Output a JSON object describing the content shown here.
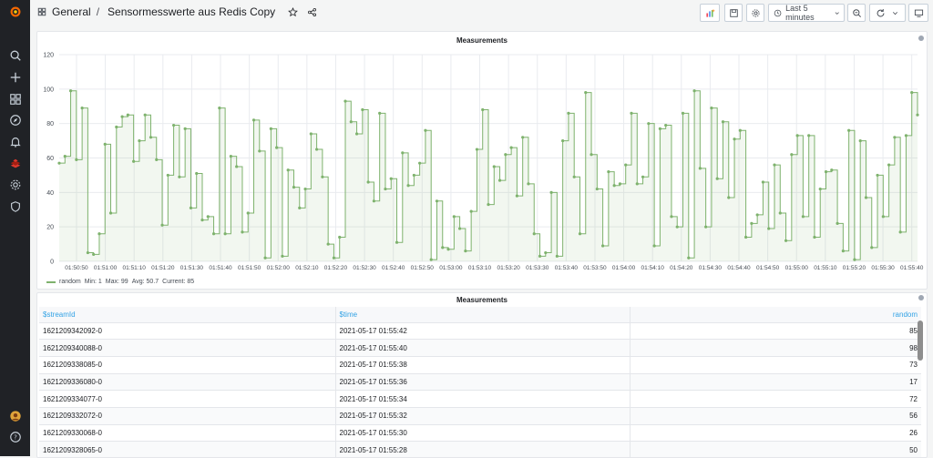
{
  "breadcrumb": {
    "folder": "General",
    "separator": "/",
    "dashboard": "Sensormesswerte aus Redis Copy"
  },
  "toolbar": {
    "time_range": "Last 5 minutes"
  },
  "graph_panel": {
    "title": "Measurements"
  },
  "table_panel": {
    "title": "Measurements",
    "columns": [
      "$streamId",
      "$time",
      "random"
    ],
    "rows": [
      [
        "1621209342092-0",
        "2021-05-17 01:55:42",
        "85"
      ],
      [
        "1621209340088-0",
        "2021-05-17 01:55:40",
        "98"
      ],
      [
        "1621209338085-0",
        "2021-05-17 01:55:38",
        "73"
      ],
      [
        "1621209336080-0",
        "2021-05-17 01:55:36",
        "17"
      ],
      [
        "1621209334077-0",
        "2021-05-17 01:55:34",
        "72"
      ],
      [
        "1621209332072-0",
        "2021-05-17 01:55:32",
        "56"
      ],
      [
        "1621209330068-0",
        "2021-05-17 01:55:30",
        "26"
      ],
      [
        "1621209328065-0",
        "2021-05-17 01:55:28",
        "50"
      ]
    ]
  },
  "legend": {
    "series": "random",
    "min": "Min: 1",
    "max": "Max: 99",
    "avg": "Avg: 50.7",
    "current": "Current: 85"
  },
  "colors": {
    "series": "#7eb26d",
    "accent": "#33a2e5",
    "sidebar": "#202226"
  },
  "chart_data": {
    "type": "line",
    "ylim": [
      0,
      120
    ],
    "y_ticks": [
      "0",
      "20",
      "40",
      "60",
      "80",
      "100",
      "120"
    ],
    "x_ticks": [
      "01:50:50",
      "01:51:00",
      "01:51:10",
      "01:51:20",
      "01:51:30",
      "01:51:40",
      "01:51:50",
      "01:52:00",
      "01:52:10",
      "01:52:20",
      "01:52:30",
      "01:52:40",
      "01:52:50",
      "01:53:00",
      "01:53:10",
      "01:53:20",
      "01:53:30",
      "01:53:40",
      "01:53:50",
      "01:54:00",
      "01:54:10",
      "01:54:20",
      "01:54:30",
      "01:54:40",
      "01:54:50",
      "01:55:00",
      "01:55:10",
      "01:55:20",
      "01:55:30",
      "01:55:40"
    ],
    "x_start": "01:50:44",
    "x_end": "01:55:42",
    "series": [
      {
        "name": "random",
        "values": [
          57,
          61,
          99,
          59,
          89,
          5,
          4,
          16,
          68,
          28,
          78,
          84,
          85,
          58,
          70,
          85,
          72,
          59,
          21,
          50,
          79,
          49,
          77,
          31,
          51,
          24,
          26,
          16,
          89,
          16,
          61,
          55,
          17,
          28,
          82,
          64,
          2,
          77,
          66,
          3,
          53,
          43,
          31,
          42,
          74,
          65,
          49,
          10,
          2,
          14,
          93,
          81,
          74,
          88,
          46,
          35,
          86,
          42,
          48,
          11,
          63,
          44,
          50,
          57,
          76,
          1,
          35,
          8,
          7,
          26,
          19,
          6,
          29,
          65,
          88,
          33,
          55,
          47,
          62,
          66,
          38,
          72,
          45,
          16,
          3,
          5,
          40,
          3,
          70,
          86,
          49,
          16,
          98,
          62,
          42,
          9,
          52,
          44,
          45,
          56,
          86,
          45,
          49,
          80,
          9,
          77,
          79,
          26,
          20,
          86,
          2,
          99,
          54,
          20,
          89,
          48,
          81,
          37,
          71,
          76,
          14,
          22,
          27,
          46,
          19,
          56,
          28,
          12,
          62,
          73,
          26,
          73,
          14,
          42,
          52,
          53,
          22,
          6,
          76,
          1,
          70,
          37,
          8,
          50,
          26,
          56,
          72,
          17,
          73,
          98,
          85
        ]
      }
    ]
  }
}
